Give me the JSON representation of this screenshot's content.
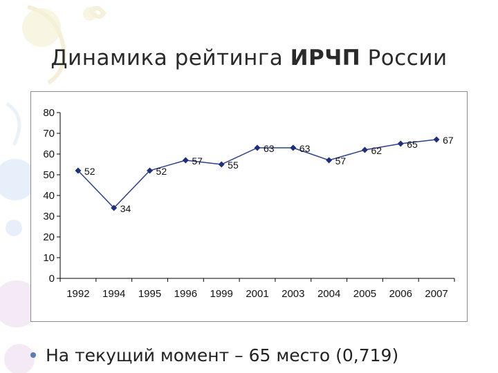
{
  "title": {
    "prefix": "Динамика рейтинга ",
    "bold": "ИРЧП",
    "suffix": " России"
  },
  "bullet": {
    "text": "На текущий момент – 65 место (0,719)"
  },
  "colors": {
    "line": "#2b3f8c",
    "marker": "#1f2f7a",
    "axis": "#000000",
    "bullet": "#5b7db3"
  },
  "chart_data": {
    "type": "line",
    "title": "",
    "xlabel": "",
    "ylabel": "",
    "categories": [
      "1992",
      "1994",
      "1995",
      "1996",
      "1999",
      "2001",
      "2003",
      "2004",
      "2005",
      "2006",
      "2007"
    ],
    "series": [
      {
        "values": [
          52,
          34,
          52,
          57,
          55,
          63,
          63,
          57,
          62,
          65,
          67
        ]
      }
    ],
    "ylim": [
      0,
      80
    ],
    "yticks": [
      0,
      10,
      20,
      30,
      40,
      50,
      60,
      70,
      80
    ],
    "grid": false,
    "legend": "none",
    "data_labels": true
  }
}
